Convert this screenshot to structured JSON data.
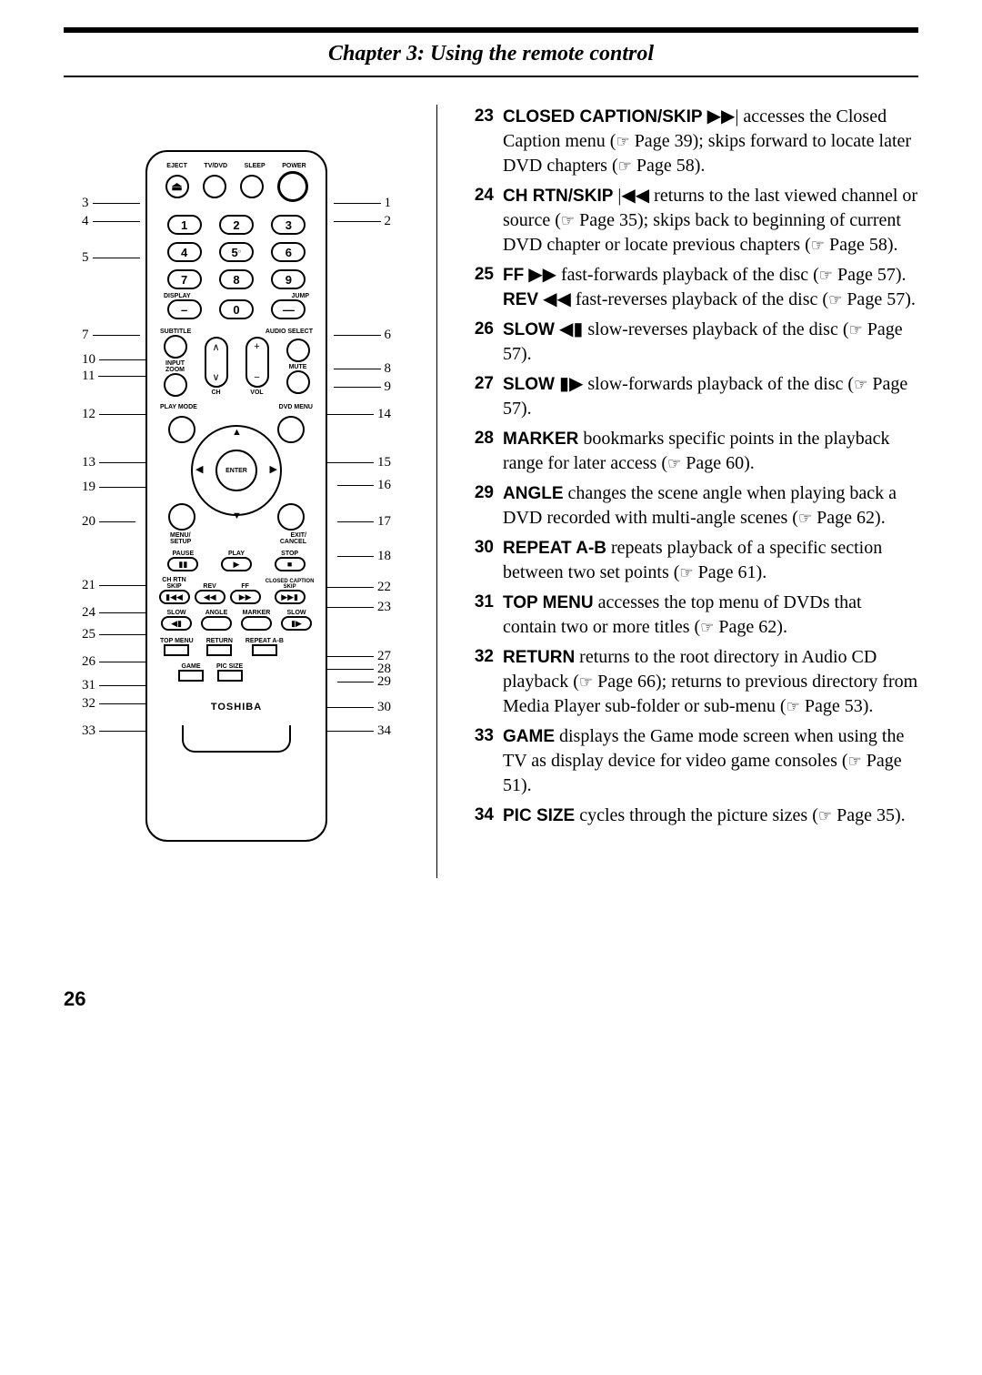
{
  "header": "Chapter 3: Using the remote control",
  "page_number": "26",
  "page_ref_icon": "☞",
  "brand": "TOSHIBA",
  "items": [
    {
      "n": "23",
      "lead": "CLOSED CAPTION/SKIP",
      "sym": "▶▶|",
      "text_a": " accesses the Closed Caption menu (",
      "pg_a": " Page 39",
      "text_b": "); skips forward to locate later DVD chapters (",
      "pg_b": " Page 58",
      "text_c": ")."
    },
    {
      "n": "24",
      "lead": "CH RTN/SKIP",
      "sym": "|◀◀",
      "text_a": " returns to the last viewed channel or source (",
      "pg_a": " Page 35",
      "text_b": "); skips back to beginning of current DVD chapter or locate previous chapters (",
      "pg_b": " Page 58",
      "text_c": ")."
    },
    {
      "n": "25",
      "lead": "FF",
      "sym": "▶▶",
      "text_a": " fast-forwards playback of the disc (",
      "pg_a": " Page 57",
      "text_b": ").",
      "lead2": "REV",
      "sym2": "◀◀",
      "text2_a": " fast-reverses playback of the disc (",
      "pg2_a": " Page 57",
      "text2_b": ")."
    },
    {
      "n": "26",
      "lead": "SLOW",
      "sym": "◀▮",
      "text_a": " slow-reverses playback of the disc (",
      "pg_a": " Page 57",
      "text_b": ")."
    },
    {
      "n": "27",
      "lead": "SLOW",
      "sym": "▮▶",
      "text_a": " slow-forwards playback of the disc (",
      "pg_a": " Page 57",
      "text_b": ")."
    },
    {
      "n": "28",
      "lead": "MARKER",
      "sym": "",
      "text_a": " bookmarks specific points in the playback range for later access (",
      "pg_a": " Page 60",
      "text_b": ")."
    },
    {
      "n": "29",
      "lead": "ANGLE",
      "sym": "",
      "text_a": " changes the scene angle when playing back a DVD recorded with multi-angle scenes (",
      "pg_a": " Page 62",
      "text_b": ")."
    },
    {
      "n": "30",
      "lead": "REPEAT A-B",
      "sym": "",
      "text_a": " repeats playback of a specific section between two set points (",
      "pg_a": " Page 61",
      "text_b": ")."
    },
    {
      "n": "31",
      "lead": "TOP MENU",
      "sym": "",
      "text_a": " accesses the top menu of DVDs that contain two or more titles (",
      "pg_a": " Page 62",
      "text_b": ")."
    },
    {
      "n": "32",
      "lead": "RETURN",
      "sym": "",
      "text_a": " returns to the root directory in Audio CD playback (",
      "pg_a": " Page 66",
      "text_b": "); returns to previous directory from Media Player sub-folder or sub-menu (",
      "pg_b": " Page 53",
      "text_c": ")."
    },
    {
      "n": "33",
      "lead": "GAME",
      "sym": "",
      "text_a": " displays the Game mode screen when using the TV as display device for video game consoles (",
      "pg_a": " Page 51",
      "text_b": ")."
    },
    {
      "n": "34",
      "lead": "PIC SIZE",
      "sym": "",
      "text_a": " cycles through the picture sizes (",
      "pg_a": " Page 35",
      "text_b": ")."
    }
  ],
  "remote_labels": {
    "top": [
      "EJECT",
      "TV/DVD",
      "SLEEP",
      "POWER"
    ],
    "display": "DISPLAY",
    "jump": "JUMP",
    "subtitle": "SUBTITLE",
    "audio_select": "AUDIO SELECT",
    "input_zoom": "INPUT\nZOOM",
    "ch": "CH",
    "vol": "VOL",
    "mute": "MUTE",
    "play_mode": "PLAY MODE",
    "dvd_menu": "DVD MENU",
    "enter": "ENTER",
    "menu_setup": "MENU/\nSETUP",
    "exit_cancel": "EXIT/\nCANCEL",
    "pause": "PAUSE",
    "play": "PLAY",
    "stop": "STOP",
    "ch_rtn_skip": "CH RTN\nSKIP",
    "rev": "REV",
    "ff": "FF",
    "closed_caption_skip": "CLOSED CAPTION\nSKIP",
    "slow_l": "SLOW",
    "angle": "ANGLE",
    "marker": "MARKER",
    "slow_r": "SLOW",
    "top_menu": "TOP MENU",
    "return": "RETURN",
    "repeat_ab": "REPEAT A-B",
    "game": "GAME",
    "pic_size": "PIC SIZE"
  },
  "callouts_left": [
    "3",
    "4",
    "5",
    "7",
    "10",
    "11",
    "12",
    "13",
    "19",
    "20",
    "21",
    "24",
    "25",
    "26",
    "31",
    "32",
    "33"
  ],
  "callouts_right": [
    "1",
    "2",
    "6",
    "8",
    "9",
    "14",
    "15",
    "16",
    "17",
    "18",
    "22",
    "23",
    "27",
    "28",
    "29",
    "30",
    "34"
  ],
  "callouts_left_pos": [
    50,
    70,
    110,
    195,
    222,
    240,
    282,
    335,
    362,
    400,
    470,
    500,
    524,
    554,
    580,
    600,
    630
  ],
  "callouts_right_pos": [
    50,
    70,
    195,
    232,
    252,
    282,
    335,
    360,
    400,
    438,
    472,
    494,
    548,
    562,
    576,
    604,
    630
  ],
  "callouts_left_len": [
    52,
    52,
    52,
    52,
    52,
    52,
    52,
    52,
    52,
    40,
    52,
    52,
    52,
    52,
    52,
    66,
    66
  ],
  "callouts_right_len": [
    52,
    52,
    52,
    52,
    52,
    52,
    52,
    40,
    40,
    40,
    52,
    52,
    52,
    52,
    40,
    58,
    58
  ]
}
